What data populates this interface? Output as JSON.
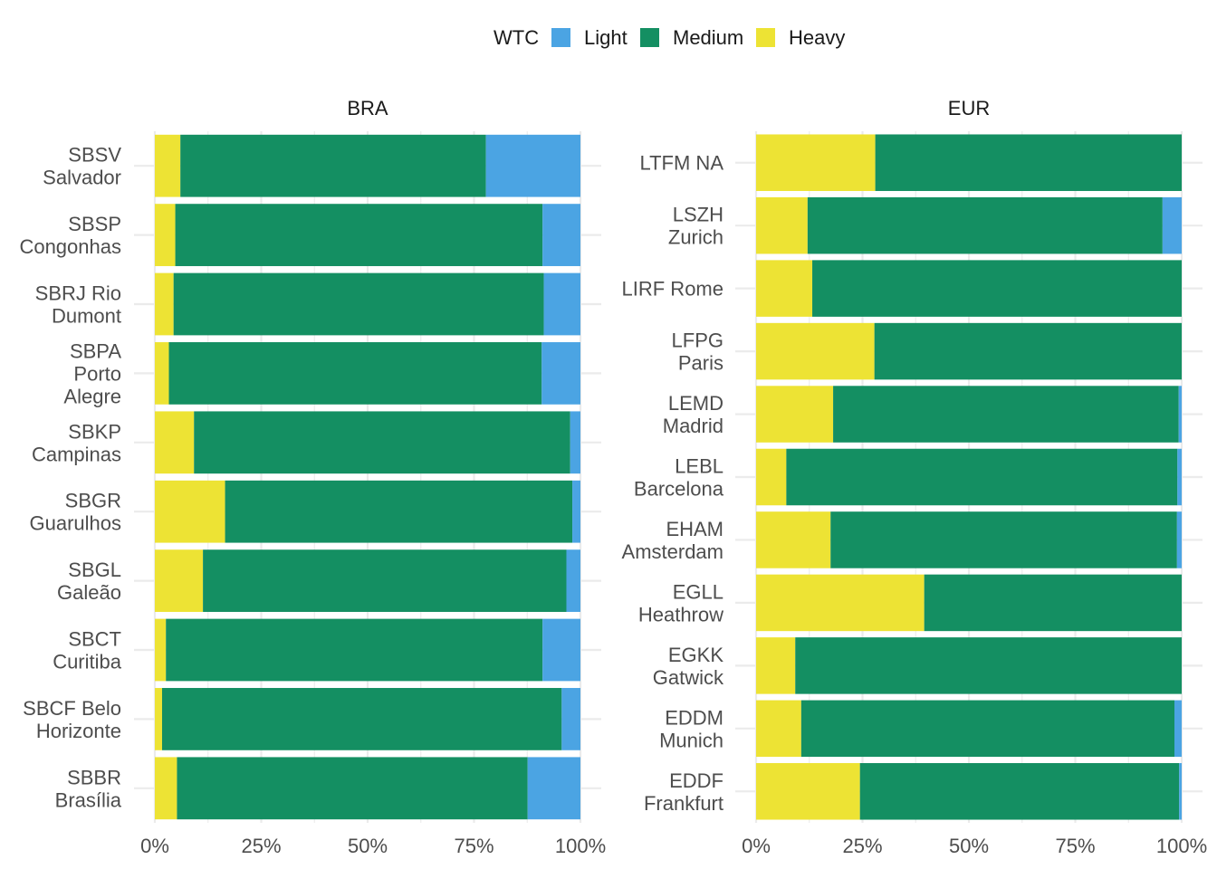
{
  "chart_data": {
    "type": "bar",
    "orientation": "horizontal",
    "stacked": "percent",
    "legend": {
      "title": "WTC",
      "placement": "top",
      "items": [
        {
          "key": "light",
          "label": "Light",
          "color": "#4BA4E3"
        },
        {
          "key": "medium",
          "label": "Medium",
          "color": "#148F62"
        },
        {
          "key": "heavy",
          "label": "Heavy",
          "color": "#EDE334"
        }
      ]
    },
    "xlim": [
      0,
      100
    ],
    "x_ticks": [
      "0%",
      "25%",
      "50%",
      "75%",
      "100%"
    ],
    "grid": true,
    "facets": [
      {
        "title": "BRA",
        "categories": [
          {
            "label": [
              "SBSV",
              "Salvador"
            ],
            "heavy": 6,
            "medium": 71.8,
            "light": 22.2
          },
          {
            "label": [
              "SBSP",
              "Congonhas"
            ],
            "heavy": 4.8,
            "medium": 86.3,
            "light": 8.9
          },
          {
            "label": [
              "SBRJ Rio",
              "Dumont"
            ],
            "heavy": 4.4,
            "medium": 87.0,
            "light": 8.6
          },
          {
            "label": [
              "SBPA",
              "Porto",
              "Alegre"
            ],
            "heavy": 3.3,
            "medium": 87.6,
            "light": 9.1
          },
          {
            "label": [
              "SBKP",
              "Campinas"
            ],
            "heavy": 9.2,
            "medium": 88.4,
            "light": 2.4
          },
          {
            "label": [
              "SBGR",
              "Guarulhos"
            ],
            "heavy": 16.5,
            "medium": 81.6,
            "light": 1.9
          },
          {
            "label": [
              "SBGL",
              "Galeão"
            ],
            "heavy": 11.3,
            "medium": 85.4,
            "light": 3.3
          },
          {
            "label": [
              "SBCT",
              "Curitiba"
            ],
            "heavy": 2.6,
            "medium": 88.5,
            "light": 8.9
          },
          {
            "label": [
              "SBCF Belo",
              "Horizonte"
            ],
            "heavy": 1.7,
            "medium": 93.9,
            "light": 4.4
          },
          {
            "label": [
              "SBBR",
              "Brasília"
            ],
            "heavy": 5.2,
            "medium": 82.4,
            "light": 12.4
          }
        ]
      },
      {
        "title": "EUR",
        "categories": [
          {
            "label": [
              "LTFM NA"
            ],
            "heavy": 28.0,
            "medium": 72.0,
            "light": 0
          },
          {
            "label": [
              "LSZH",
              "Zurich"
            ],
            "heavy": 12.1,
            "medium": 83.4,
            "light": 4.5
          },
          {
            "label": [
              "LIRF Rome"
            ],
            "heavy": 13.2,
            "medium": 86.8,
            "light": 0
          },
          {
            "label": [
              "LFPG",
              "Paris"
            ],
            "heavy": 27.8,
            "medium": 72.2,
            "light": 0
          },
          {
            "label": [
              "LEMD",
              "Madrid"
            ],
            "heavy": 18.1,
            "medium": 81.2,
            "light": 0.7
          },
          {
            "label": [
              "LEBL",
              "Barcelona"
            ],
            "heavy": 7.1,
            "medium": 91.9,
            "light": 1.0
          },
          {
            "label": [
              "EHAM",
              "Amsterdam"
            ],
            "heavy": 17.5,
            "medium": 81.4,
            "light": 1.1
          },
          {
            "label": [
              "EGLL",
              "Heathrow"
            ],
            "heavy": 39.5,
            "medium": 60.5,
            "light": 0
          },
          {
            "label": [
              "EGKK",
              "Gatwick"
            ],
            "heavy": 9.2,
            "medium": 90.8,
            "light": 0
          },
          {
            "label": [
              "EDDM",
              "Munich"
            ],
            "heavy": 10.6,
            "medium": 87.7,
            "light": 1.7
          },
          {
            "label": [
              "EDDF",
              "Frankfurt"
            ],
            "heavy": 24.4,
            "medium": 75.0,
            "light": 0.6
          }
        ]
      }
    ]
  }
}
